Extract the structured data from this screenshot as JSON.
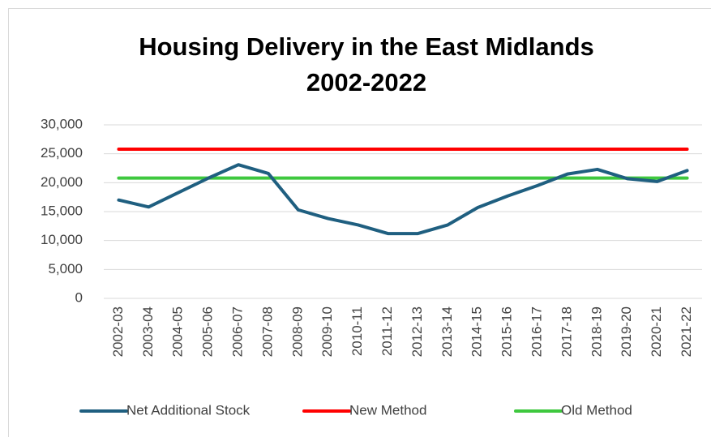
{
  "chart_data": {
    "type": "line",
    "title": [
      "Housing Delivery in the East Midlands",
      "2002-2022"
    ],
    "categories": [
      "2002-03",
      "2003-04",
      "2004-05",
      "2005-06",
      "2006-07",
      "2007-08",
      "2008-09",
      "2009-10",
      "2010-11",
      "2011-12",
      "2012-13",
      "2013-14",
      "2014-15",
      "2015-16",
      "2016-17",
      "2017-18",
      "2018-19",
      "2019-20",
      "2020-21",
      "2021-22"
    ],
    "series": [
      {
        "name": "Net Additional Stock",
        "color": "#1f5f80",
        "values": [
          17000,
          15800,
          18300,
          20800,
          23100,
          21600,
          15300,
          13800,
          12700,
          11200,
          11200,
          12700,
          15700,
          17700,
          19500,
          21500,
          22300,
          20700,
          20200,
          22100
        ]
      },
      {
        "name": "New Method",
        "color": "#ff0000",
        "values": [
          25800,
          25800,
          25800,
          25800,
          25800,
          25800,
          25800,
          25800,
          25800,
          25800,
          25800,
          25800,
          25800,
          25800,
          25800,
          25800,
          25800,
          25800,
          25800,
          25800
        ]
      },
      {
        "name": "Old Method",
        "color": "#3ec83e",
        "values": [
          20800,
          20800,
          20800,
          20800,
          20800,
          20800,
          20800,
          20800,
          20800,
          20800,
          20800,
          20800,
          20800,
          20800,
          20800,
          20800,
          20800,
          20800,
          20800,
          20800
        ]
      }
    ],
    "ylim": [
      0,
      30000
    ],
    "yticks": [
      0,
      {
        "value": 5000,
        "label": "5,000"
      },
      {
        "value": 10000,
        "label": "10,000"
      },
      {
        "value": 15000,
        "label": "15,000"
      },
      {
        "value": 20000,
        "label": "20,000"
      },
      {
        "value": 25000,
        "label": "25,000"
      },
      {
        "value": 30000,
        "label": "30,000"
      }
    ],
    "grid": true,
    "legend": "bottom"
  }
}
